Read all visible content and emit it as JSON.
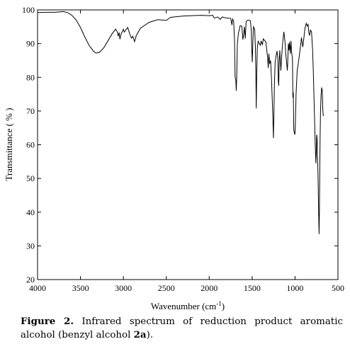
{
  "chart_data": {
    "type": "line",
    "xlabel": "Wavenumber (cm",
    "xlabel_sup": "-1",
    "xlabel_end": ")",
    "ylabel": "Transmittance ( % )",
    "xlim": [
      4000,
      500
    ],
    "ylim": [
      20,
      100
    ],
    "x_ticks": [
      4000,
      3500,
      3000,
      2500,
      2000,
      1500,
      1000,
      500
    ],
    "y_ticks": [
      20,
      30,
      40,
      50,
      60,
      70,
      80,
      90,
      100
    ],
    "grid": false,
    "line_color": "#000000",
    "series": [
      {
        "points": [
          [
            4000,
            99.2
          ],
          [
            3900,
            99.3
          ],
          [
            3800,
            99.3
          ],
          [
            3700,
            99.5
          ],
          [
            3650,
            99.2
          ],
          [
            3600,
            98.4
          ],
          [
            3550,
            97.0
          ],
          [
            3500,
            94.8
          ],
          [
            3450,
            92.0
          ],
          [
            3400,
            89.5
          ],
          [
            3350,
            87.8
          ],
          [
            3320,
            87.2
          ],
          [
            3280,
            87.4
          ],
          [
            3230,
            88.7
          ],
          [
            3180,
            90.8
          ],
          [
            3130,
            93.0
          ],
          [
            3090,
            94.3
          ],
          [
            3070,
            93.4
          ],
          [
            3060,
            92.2
          ],
          [
            3050,
            93.3
          ],
          [
            3040,
            91.3
          ],
          [
            3030,
            92.6
          ],
          [
            3000,
            94.3
          ],
          [
            2990,
            93.4
          ],
          [
            2950,
            94.8
          ],
          [
            2925,
            92.8
          ],
          [
            2905,
            91.6
          ],
          [
            2890,
            92.2
          ],
          [
            2870,
            90.6
          ],
          [
            2850,
            92.4
          ],
          [
            2800,
            94.6
          ],
          [
            2700,
            96.3
          ],
          [
            2600,
            97.1
          ],
          [
            2500,
            96.9
          ],
          [
            2450,
            97.8
          ],
          [
            2300,
            98.2
          ],
          [
            2100,
            98.4
          ],
          [
            2000,
            98.3
          ],
          [
            1960,
            98.4
          ],
          [
            1940,
            97.6
          ],
          [
            1900,
            97.9
          ],
          [
            1870,
            97.2
          ],
          [
            1850,
            97.9
          ],
          [
            1800,
            97.6
          ],
          [
            1750,
            97.5
          ],
          [
            1735,
            95.5
          ],
          [
            1728,
            97.4
          ],
          [
            1715,
            96.5
          ],
          [
            1705,
            91.0
          ],
          [
            1698,
            80.0
          ],
          [
            1690,
            79.2
          ],
          [
            1685,
            76.0
          ],
          [
            1680,
            79.5
          ],
          [
            1672,
            90.0
          ],
          [
            1660,
            93.0
          ],
          [
            1640,
            95.3
          ],
          [
            1620,
            95.2
          ],
          [
            1608,
            91.2
          ],
          [
            1600,
            92.4
          ],
          [
            1590,
            95.0
          ],
          [
            1580,
            91.5
          ],
          [
            1570,
            96.5
          ],
          [
            1550,
            97.0
          ],
          [
            1520,
            96.8
          ],
          [
            1510,
            94.0
          ],
          [
            1505,
            89.0
          ],
          [
            1498,
            84.5
          ],
          [
            1492,
            90.0
          ],
          [
            1485,
            95.0
          ],
          [
            1470,
            94.3
          ],
          [
            1462,
            89.0
          ],
          [
            1456,
            80.5
          ],
          [
            1452,
            70.8
          ],
          [
            1447,
            80.0
          ],
          [
            1440,
            88.5
          ],
          [
            1430,
            90.7
          ],
          [
            1405,
            89.5
          ],
          [
            1395,
            90.8
          ],
          [
            1380,
            89.6
          ],
          [
            1370,
            91.4
          ],
          [
            1340,
            90.5
          ],
          [
            1320,
            86.0
          ],
          [
            1312,
            82.8
          ],
          [
            1305,
            87.0
          ],
          [
            1295,
            84.0
          ],
          [
            1285,
            85.0
          ],
          [
            1275,
            80.0
          ],
          [
            1265,
            73.0
          ],
          [
            1258,
            68.0
          ],
          [
            1252,
            62.0
          ],
          [
            1247,
            68.0
          ],
          [
            1240,
            78.0
          ],
          [
            1232,
            84.5
          ],
          [
            1220,
            86.5
          ],
          [
            1210,
            87.8
          ],
          [
            1200,
            85.5
          ],
          [
            1195,
            79.0
          ],
          [
            1190,
            77.5
          ],
          [
            1185,
            84.0
          ],
          [
            1178,
            88.0
          ],
          [
            1170,
            84.5
          ],
          [
            1165,
            82.0
          ],
          [
            1155,
            86.5
          ],
          [
            1145,
            90.0
          ],
          [
            1130,
            93.5
          ],
          [
            1115,
            90.0
          ],
          [
            1108,
            87.0
          ],
          [
            1100,
            85.0
          ],
          [
            1090,
            82.0
          ],
          [
            1085,
            84.5
          ],
          [
            1078,
            90.0
          ],
          [
            1070,
            88.0
          ],
          [
            1065,
            90.5
          ],
          [
            1055,
            87.0
          ],
          [
            1048,
            90.8
          ],
          [
            1040,
            87.5
          ],
          [
            1030,
            85.5
          ],
          [
            1025,
            74.0
          ],
          [
            1020,
            75.5
          ],
          [
            1015,
            64.5
          ],
          [
            1008,
            63.5
          ],
          [
            1002,
            63.0
          ],
          [
            996,
            66.0
          ],
          [
            988,
            75.0
          ],
          [
            975,
            82.0
          ],
          [
            960,
            84.5
          ],
          [
            940,
            88.5
          ],
          [
            925,
            91.8
          ],
          [
            910,
            89.0
          ],
          [
            900,
            91.0
          ],
          [
            885,
            94.5
          ],
          [
            870,
            96.0
          ],
          [
            858,
            95.2
          ],
          [
            848,
            95.7
          ],
          [
            838,
            93.0
          ],
          [
            830,
            92.5
          ],
          [
            820,
            94.0
          ],
          [
            808,
            93.5
          ],
          [
            795,
            88.0
          ],
          [
            785,
            80.0
          ],
          [
            775,
            70.0
          ],
          [
            765,
            60.0
          ],
          [
            757,
            54.5
          ],
          [
            752,
            58.0
          ],
          [
            748,
            63.0
          ],
          [
            743,
            62.0
          ],
          [
            740,
            57.5
          ],
          [
            735,
            54.0
          ],
          [
            730,
            48.0
          ],
          [
            725,
            40.0
          ],
          [
            720,
            33.5
          ],
          [
            716,
            40.0
          ],
          [
            712,
            52.0
          ],
          [
            708,
            62.0
          ],
          [
            703,
            70.0
          ],
          [
            697,
            74.5
          ],
          [
            690,
            77.0
          ],
          [
            683,
            76.0
          ],
          [
            676,
            70.0
          ],
          [
            670,
            68.5
          ]
        ]
      }
    ]
  },
  "caption": {
    "label": "Figure 2.",
    "text_before": " Infrared spectrum of reduction product aromatic alcohol (benzyl alcohol ",
    "compound_number": "2a",
    "text_after": ")."
  }
}
